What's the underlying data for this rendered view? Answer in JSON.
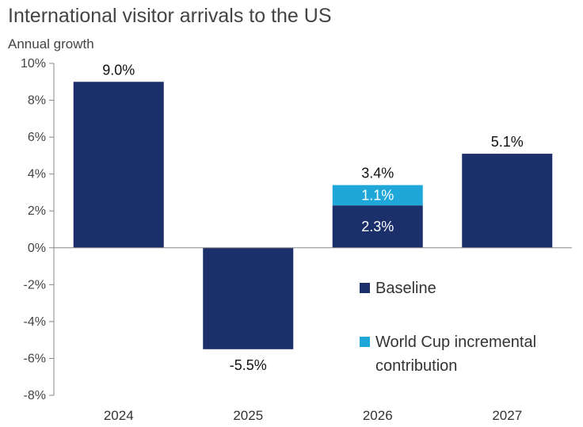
{
  "chart_data": {
    "type": "bar",
    "stacked": true,
    "title": "International visitor arrivals to the US",
    "subtitle": "Annual growth",
    "categories": [
      "2024",
      "2025",
      "2026",
      "2027"
    ],
    "series": [
      {
        "name": "Baseline",
        "values": [
          9.0,
          -5.5,
          2.3,
          5.1
        ],
        "color": "#1b2f6b"
      },
      {
        "name": "World Cup incremental contribution",
        "values": [
          0,
          0,
          1.1,
          0
        ],
        "color": "#1ea7d8"
      }
    ],
    "data_labels": {
      "totals": [
        "9.0%",
        "-5.5%",
        "3.4%",
        "5.1%"
      ],
      "inside": {
        "2026": [
          "2.3%",
          "1.1%"
        ]
      }
    },
    "y_ticks": [
      "10%",
      "8%",
      "6%",
      "4%",
      "2%",
      "0%",
      "-2%",
      "-4%",
      "-6%",
      "-8%"
    ],
    "ylim": [
      -8,
      10
    ],
    "grid": false,
    "legend_position": "lower-right",
    "legend": [
      {
        "label": "Baseline",
        "color": "#1b2f6b"
      },
      {
        "label_lines": [
          "World Cup incremental",
          "contribution"
        ],
        "color": "#1ea7d8"
      }
    ]
  }
}
